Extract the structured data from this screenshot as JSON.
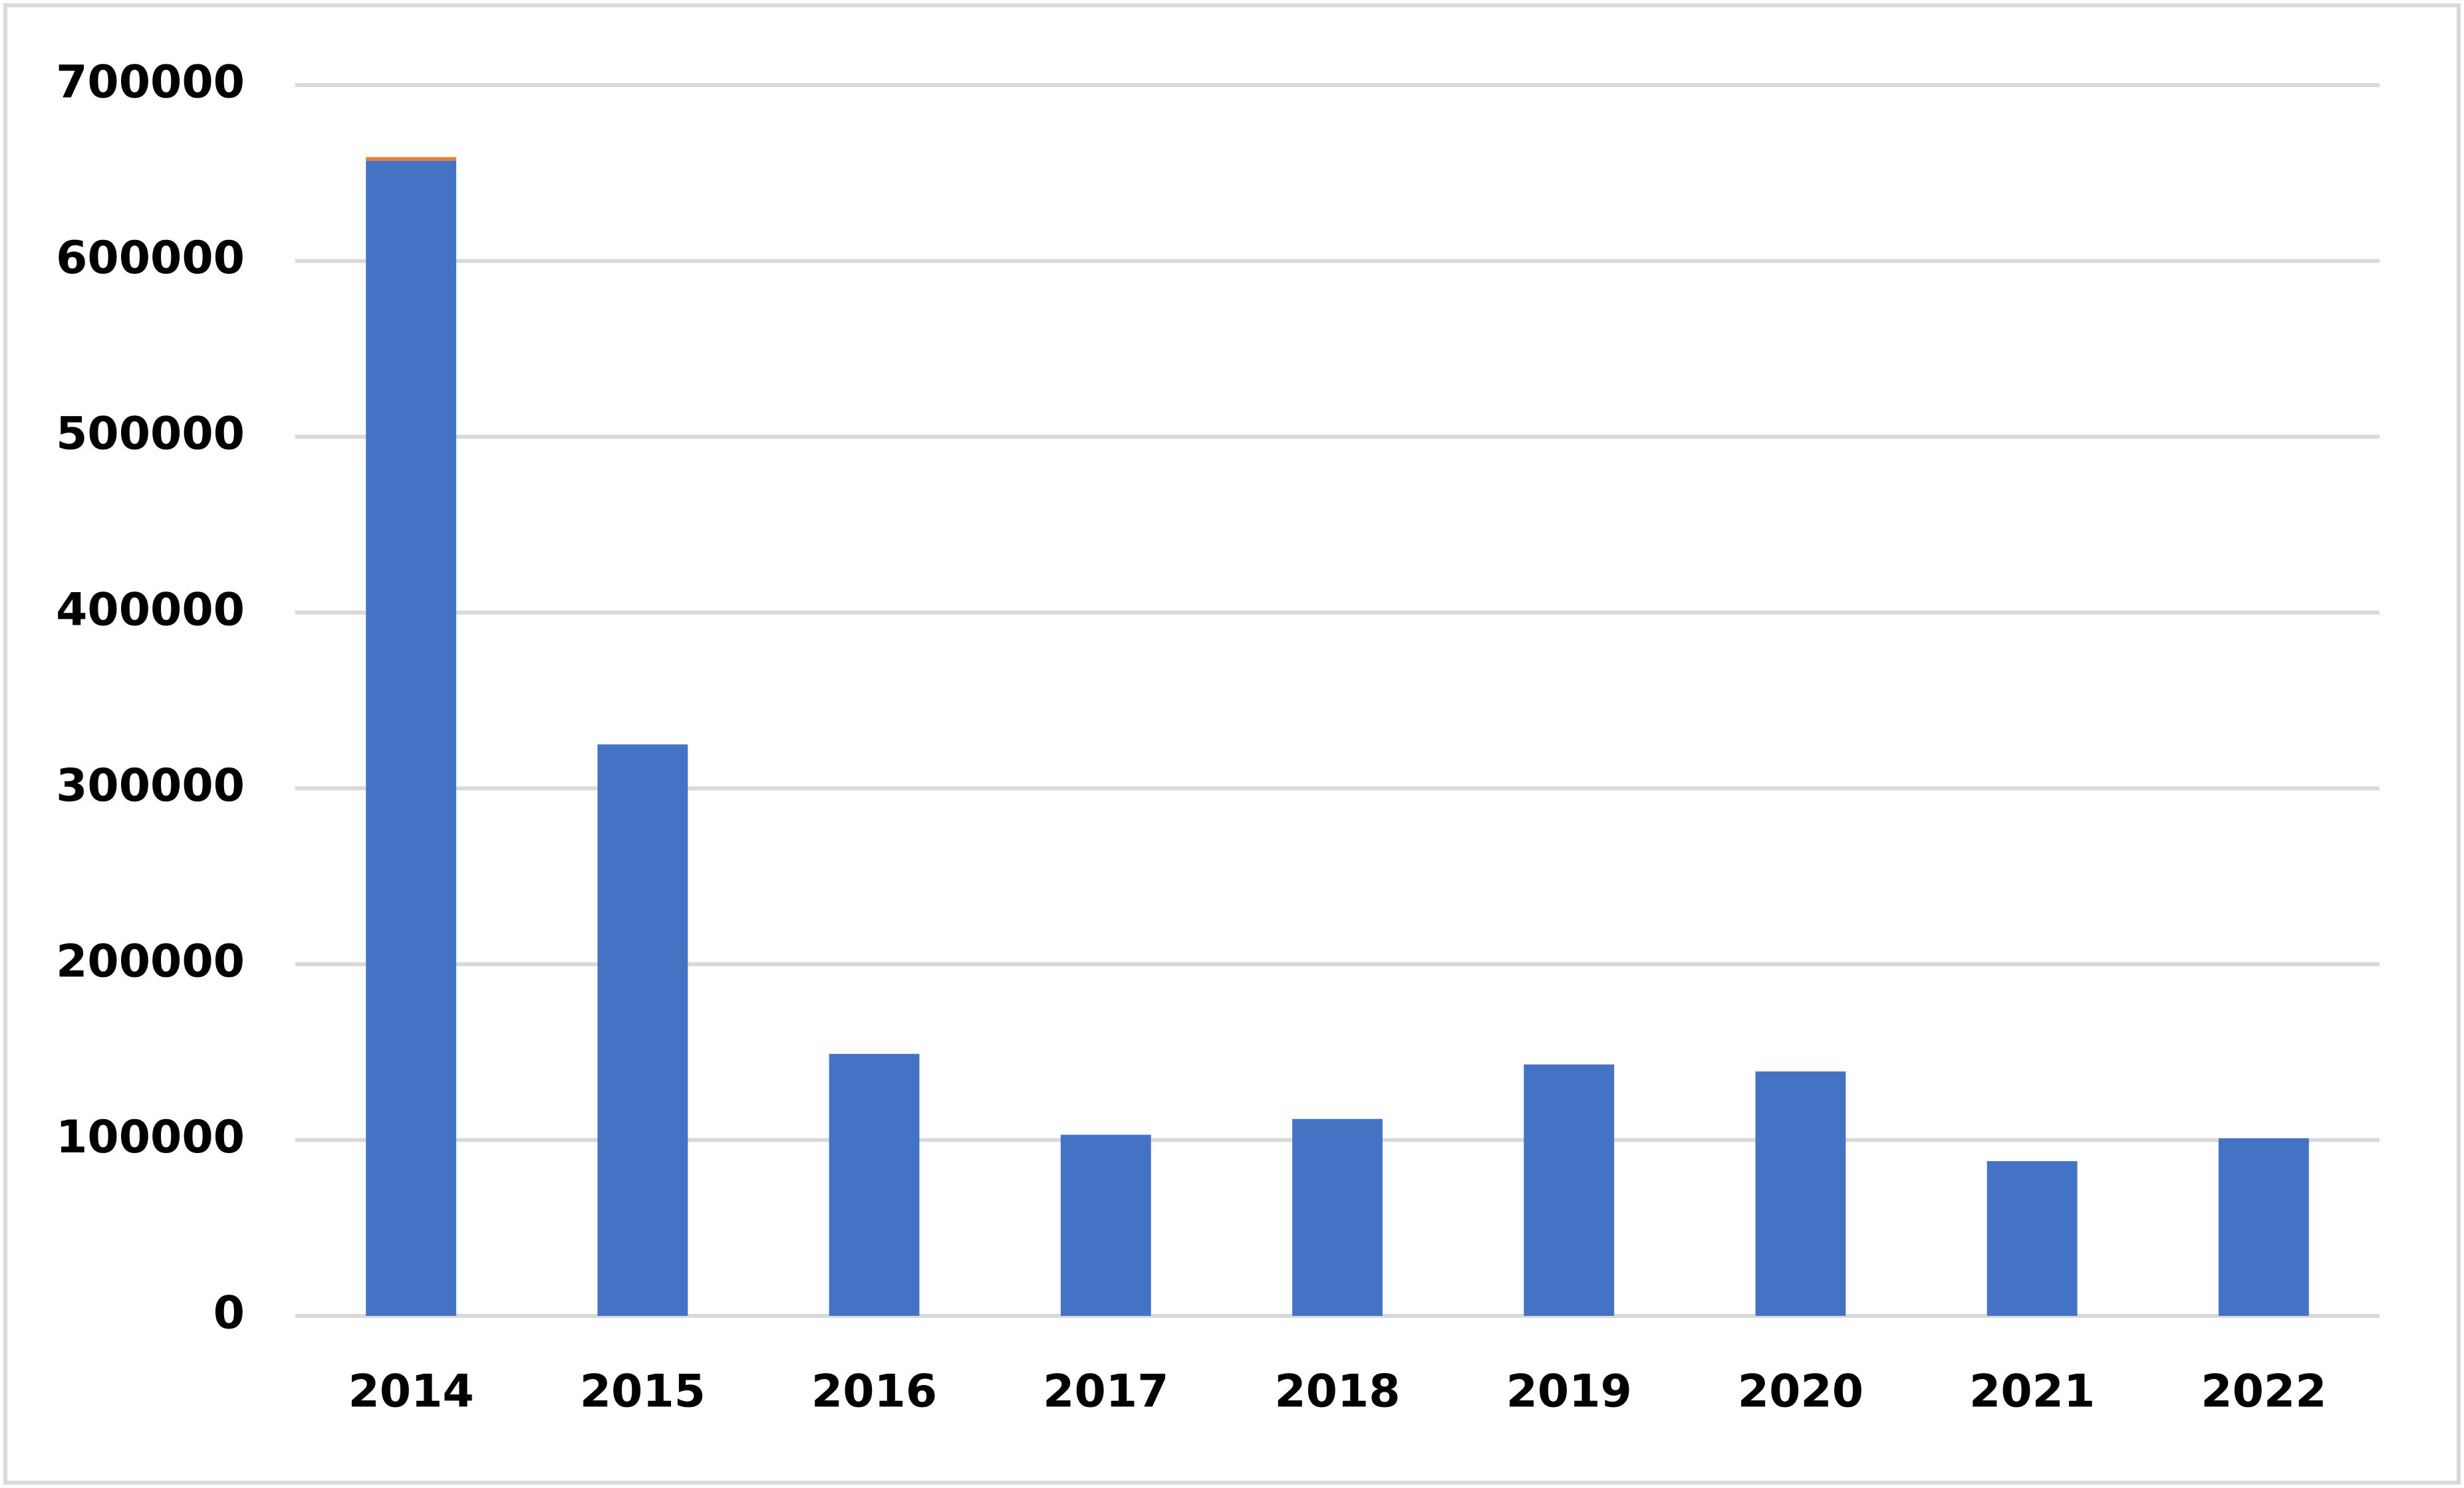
{
  "chart_data": {
    "type": "bar",
    "stacked": true,
    "categories": [
      "2014",
      "2015",
      "2016",
      "2017",
      "2018",
      "2019",
      "2020",
      "2021",
      "2022"
    ],
    "series": [
      {
        "color": "#4472c4",
        "values": [
          657000,
          325000,
          149000,
          103000,
          112000,
          143000,
          139000,
          88000,
          101000
        ]
      },
      {
        "color": "#ed7d31",
        "values": [
          2000,
          0,
          0,
          0,
          0,
          0,
          0,
          0,
          0
        ]
      }
    ],
    "ylim": [
      0,
      700000
    ],
    "yticks": [
      0,
      100000,
      200000,
      300000,
      400000,
      500000,
      600000,
      700000
    ],
    "grid": true
  }
}
